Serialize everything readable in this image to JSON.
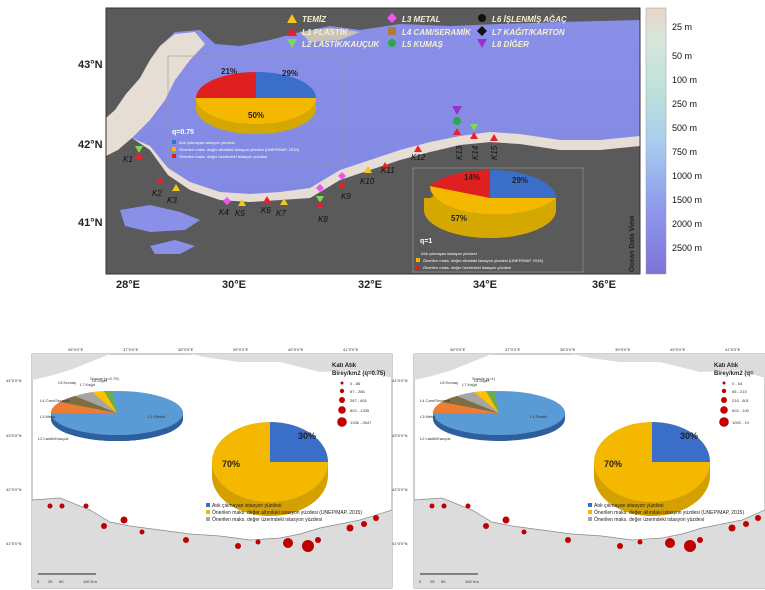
{
  "top_map": {
    "lat_labels": [
      "43°N",
      "42°N",
      "41°N"
    ],
    "lon_labels": [
      "28°E",
      "30°E",
      "32°E",
      "34°E",
      "36°E"
    ],
    "scale_labels": [
      "25 m",
      "50 m",
      "100 m",
      "250 m",
      "500 m",
      "750 m",
      "1000 m",
      "1500 m",
      "2000 m",
      "2500 m"
    ],
    "watermark": "Ocean Data View",
    "legend": [
      {
        "label": "TEMİZ",
        "color": "#f5c518",
        "shape": "triangle"
      },
      {
        "label": "L1 PLASTİK",
        "color": "#e8202a",
        "shape": "triangle"
      },
      {
        "label": "L2 LASTİK/KAUÇUK",
        "color": "#7ed957",
        "shape": "triangle-down"
      },
      {
        "label": "L3 METAL",
        "color": "#ee55ee",
        "shape": "diamond"
      },
      {
        "label": "L4 CAM/SERAMİK",
        "color": "#b07a3a",
        "shape": "square"
      },
      {
        "label": "L5 KUMAŞ",
        "color": "#2aa84a",
        "shape": "circle"
      },
      {
        "label": "L6 İŞLENMİŞ AĞAÇ",
        "color": "#111111",
        "shape": "circle"
      },
      {
        "label": "L7 KAĞIT/KARTON",
        "color": "#111111",
        "shape": "diamond"
      },
      {
        "label": "L8 DİĞER",
        "color": "#9b30c8",
        "shape": "triangle-down"
      }
    ],
    "stations": [
      "K1",
      "K2",
      "K3",
      "K4",
      "K5",
      "K6",
      "K7",
      "K8",
      "K9",
      "K10",
      "K11",
      "K12",
      "K13",
      "K14",
      "K15"
    ],
    "pie1": {
      "label": "q=0.75",
      "slices": [
        {
          "label": "29%",
          "value": 29,
          "color": "#3a6ec8"
        },
        {
          "label": "50%",
          "value": 50,
          "color": "#f5b800"
        },
        {
          "label": "21%",
          "value": 21,
          "color": "#e02020"
        }
      ],
      "legend": [
        "Atık çıkmayan istasyon yüzdesi",
        "Önerilen maks. değer altındaki istasyon yüzdesi (UNEP/MAP, 2015)",
        "Önerilen maks. değer üzerindeki istasyon yüzdesi"
      ]
    },
    "pie2": {
      "label": "q=1",
      "slices": [
        {
          "label": "29%",
          "value": 29,
          "color": "#3a6ec8"
        },
        {
          "label": "57%",
          "value": 57,
          "color": "#f5b800"
        },
        {
          "label": "14%",
          "value": 14,
          "color": "#e02020"
        }
      ],
      "legend": [
        "Atık çıkmayan istasyon yüzdesi",
        "Önerilen maks. değer altındaki istasyon yüzdesi (UNEP/MAP, 2015)",
        "Önerilen maks. değer üzerindeki istasyon yüzdesi"
      ]
    }
  },
  "bottom_left": {
    "lon_labels": [
      "36°0'0\"E",
      "37°0'0\"E",
      "38°0'0\"E",
      "39°0'0\"E",
      "40°0'0\"E",
      "41°0'0\"E"
    ],
    "lat_labels": [
      "44°0'0\"N",
      "43°0'0\"N",
      "42°0'0\"N",
      "41°0'0\"N"
    ],
    "source_label": "Source (q=0.75)",
    "legend_title": "Katı Atık",
    "legend_sub": "Birey/km2 (q=0.75)",
    "legend_items": [
      "0 - 86",
      "87 - 286",
      "287 - 801",
      "802 - 1335",
      "1336 - 2647"
    ],
    "big_pie": [
      {
        "label": "30%",
        "value": 30,
        "color": "#3a6ec8"
      },
      {
        "label": "70%",
        "value": 70,
        "color": "#f5b800"
      }
    ],
    "small_pie_labels": [
      "L1 Plastik",
      "L2 Lastik/Kauçuk",
      "L3 Metal",
      "L4 Cam/Seramik",
      "L5 Kumaş",
      "L7 Kağıt",
      "L8 Diğer"
    ],
    "pie_legend": [
      "Atık çıkmayan istasyon yüzdesi",
      "Önerilen maks. değer altındaki istasyon yüzdesi (UNEP/MAP, 2015)",
      "Önerilen maks. değer üzerindeki istasyon yüzdesi"
    ],
    "scale_bar": [
      "0",
      "25",
      "50",
      "100 Km"
    ]
  },
  "bottom_right": {
    "lon_labels": [
      "36°0'0\"E",
      "37°0'0\"E",
      "38°0'0\"E",
      "39°0'0\"E",
      "40°0'0\"E",
      "41°0'0\"E"
    ],
    "lat_labels": [
      "44°0'0\"N",
      "43°0'0\"N",
      "42°0'0\"N",
      "41°0'0\"N"
    ],
    "source_label": "Source (q=1)",
    "legend_title": "Katı Atık",
    "legend_sub": "Birey/km2 (q=",
    "legend_items": [
      "0 - 64",
      "65 - 215",
      "216 - 601",
      "602 - 100",
      "1002 - 19"
    ],
    "big_pie": [
      {
        "label": "30%",
        "value": 30,
        "color": "#3a6ec8"
      },
      {
        "label": "70%",
        "value": 70,
        "color": "#f5b800"
      }
    ],
    "small_pie_labels": [
      "L1 Plastik",
      "L2 Lastik/Kauçuk",
      "L3 Metal",
      "L4 Cam/Seramik",
      "L5 Kumaş",
      "L7 Kağıt",
      "L8 Diğer"
    ],
    "pie_legend": [
      "Atık çıkmayan istasyon yüzdesi",
      "Önerilen maks. değer altındaki istasyon yüzdesi (UNEP/MAP, 2015)",
      "Önerilen maks. değer üzerindeki istasyon yüzdesi"
    ],
    "scale_bar": [
      "0",
      "25",
      "50",
      "100 Km"
    ]
  }
}
